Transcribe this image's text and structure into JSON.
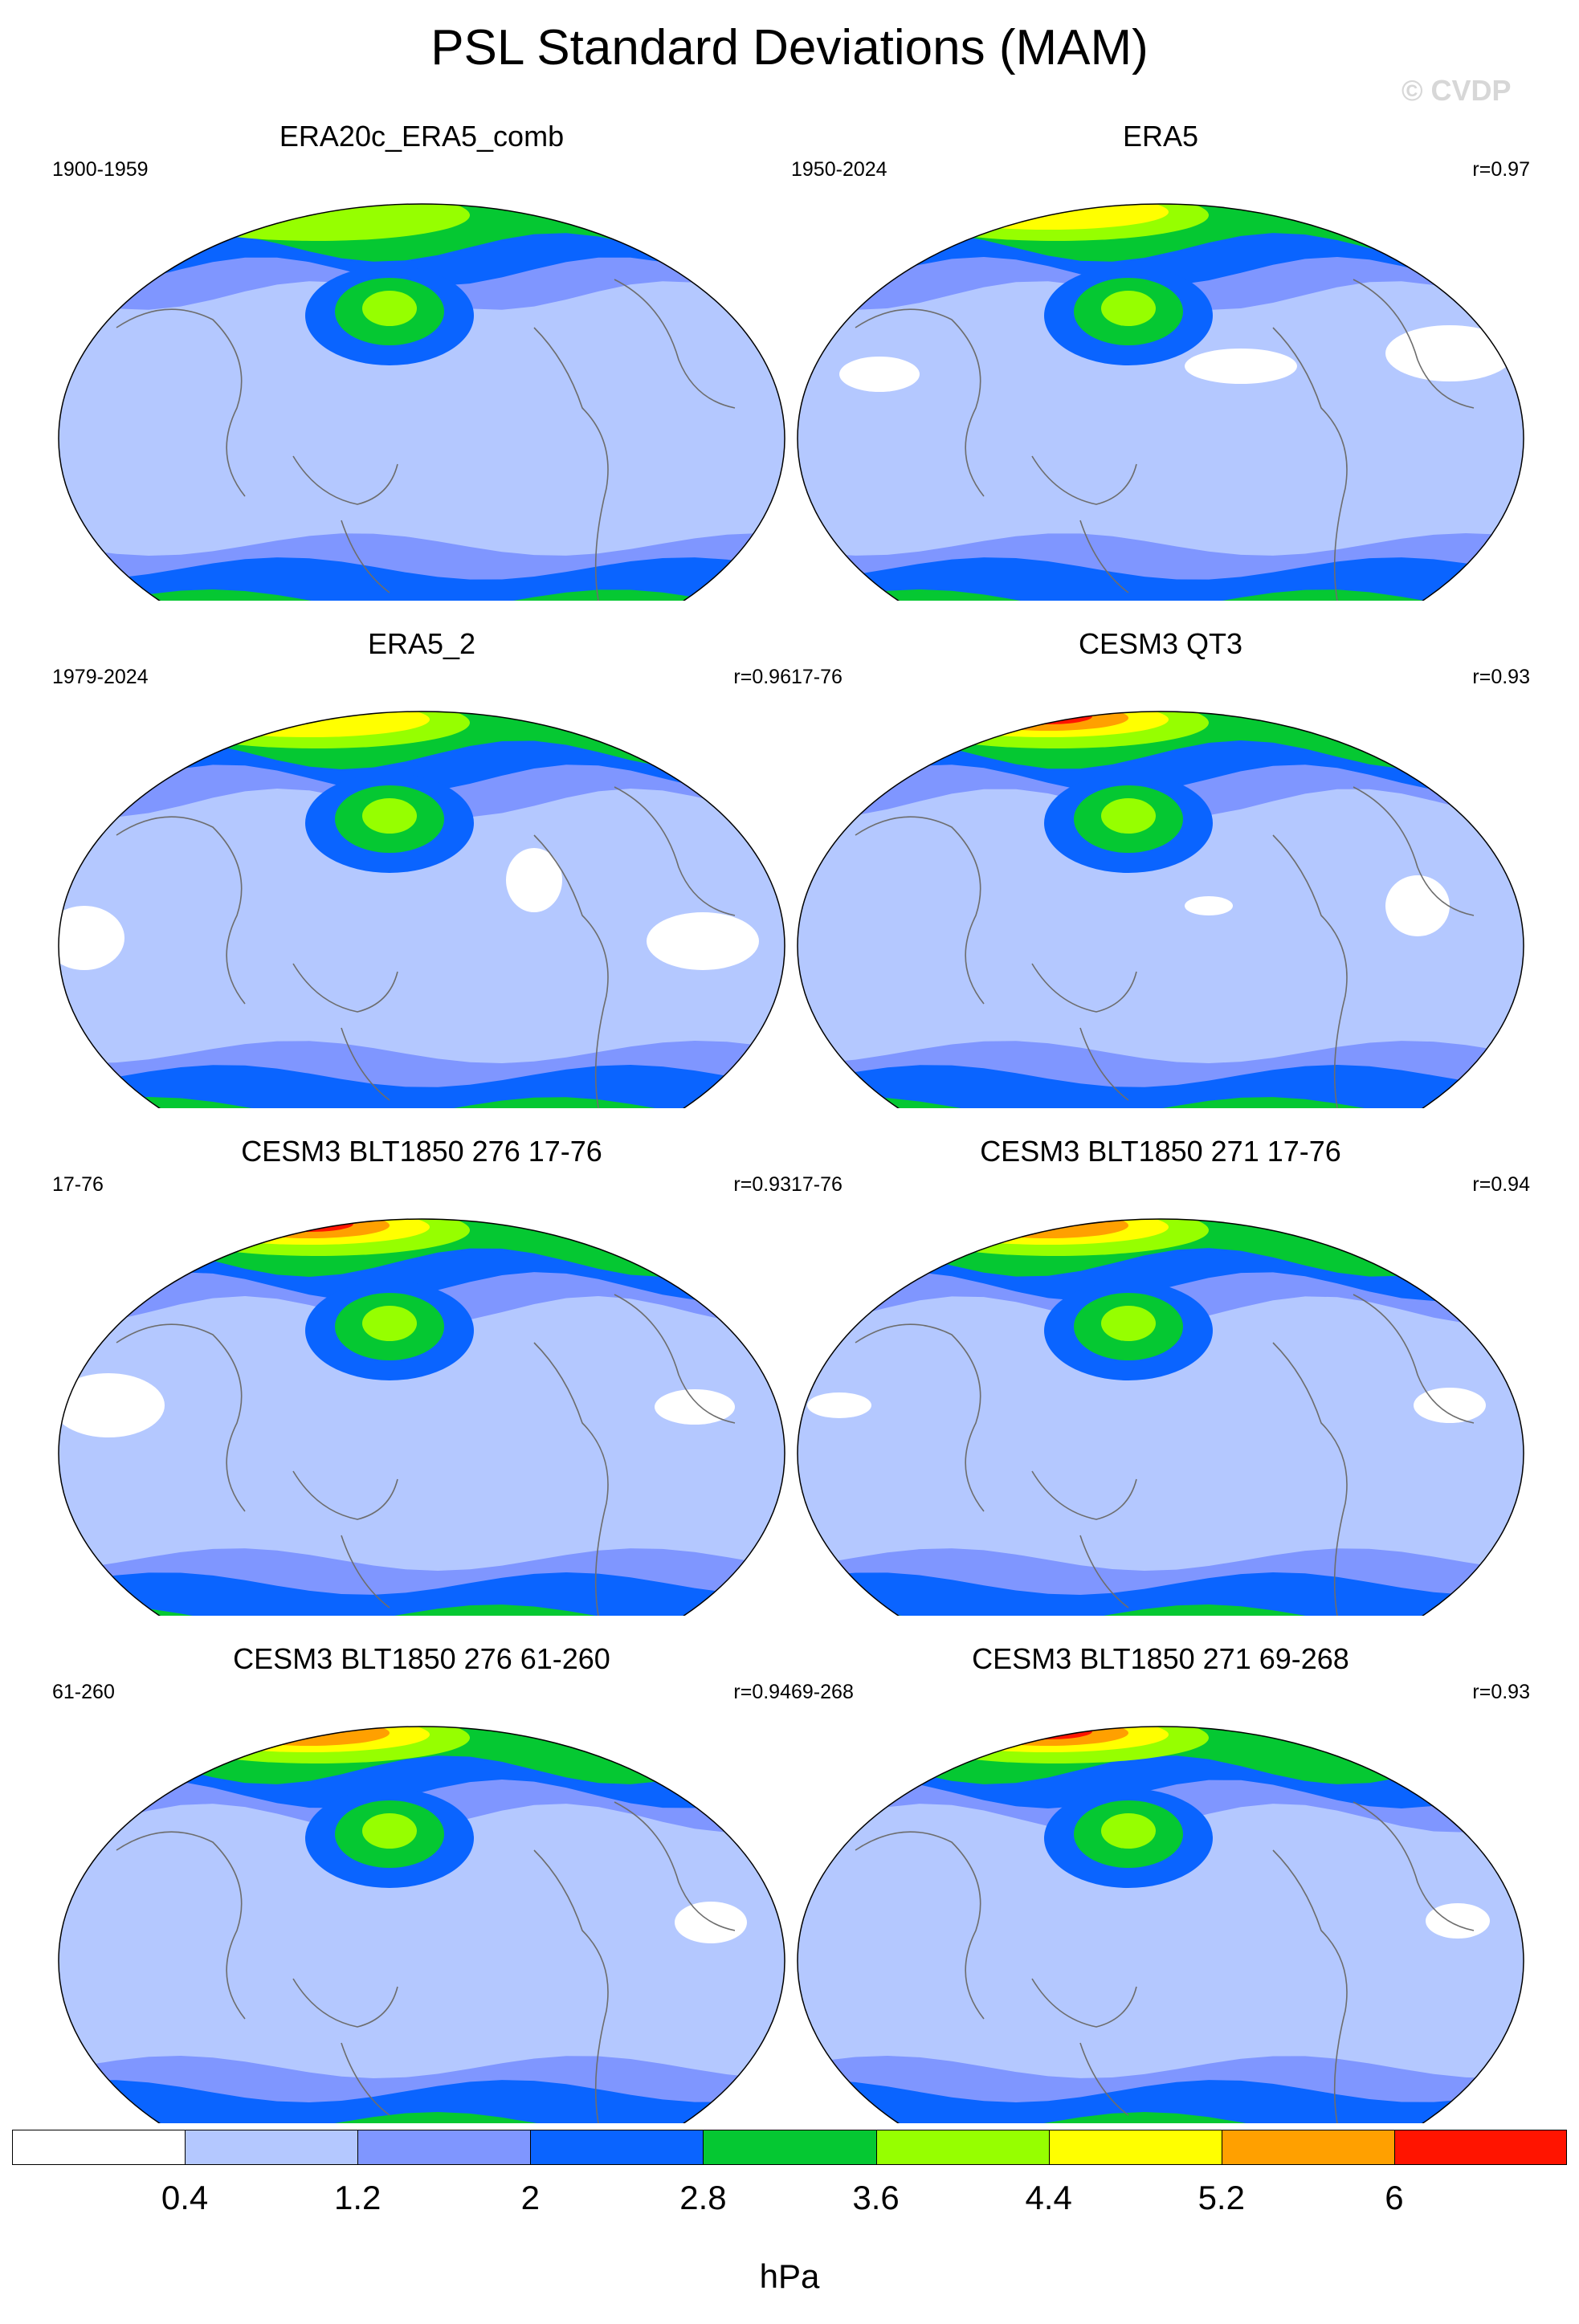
{
  "title": "PSL Standard Deviations (MAM)",
  "watermark": "© CVDP",
  "panels": [
    {
      "title": "ERA20c_ERA5_comb",
      "left": "1900-1959",
      "right": ""
    },
    {
      "title": "ERA5",
      "left": "1950-2024",
      "right": "r=0.97"
    },
    {
      "title": "ERA5_2",
      "left": "1979-2024",
      "right": "r=0.96"
    },
    {
      "title": "CESM3 QT3",
      "left": "17-76",
      "right": "r=0.93"
    },
    {
      "title": "CESM3 BLT1850 276 17-76",
      "left": "17-76",
      "right": "r=0.93"
    },
    {
      "title": "CESM3 BLT1850 271 17-76",
      "left": "17-76",
      "right": "r=0.94"
    },
    {
      "title": "CESM3 BLT1850 276 61-260",
      "left": "61-260",
      "right": "r=0.94"
    },
    {
      "title": "CESM3 BLT1850 271 69-268",
      "left": "69-268",
      "right": "r=0.93"
    }
  ],
  "colorbar": {
    "colors": [
      "#ffffff",
      "#b4c8ff",
      "#7f96ff",
      "#0a64ff",
      "#05c832",
      "#96ff00",
      "#ffff00",
      "#ffa000",
      "#ff1400"
    ],
    "ticks": [
      "0.4",
      "1.2",
      "2",
      "2.8",
      "3.6",
      "4.4",
      "5.2",
      "6"
    ],
    "unit": "hPa"
  }
}
